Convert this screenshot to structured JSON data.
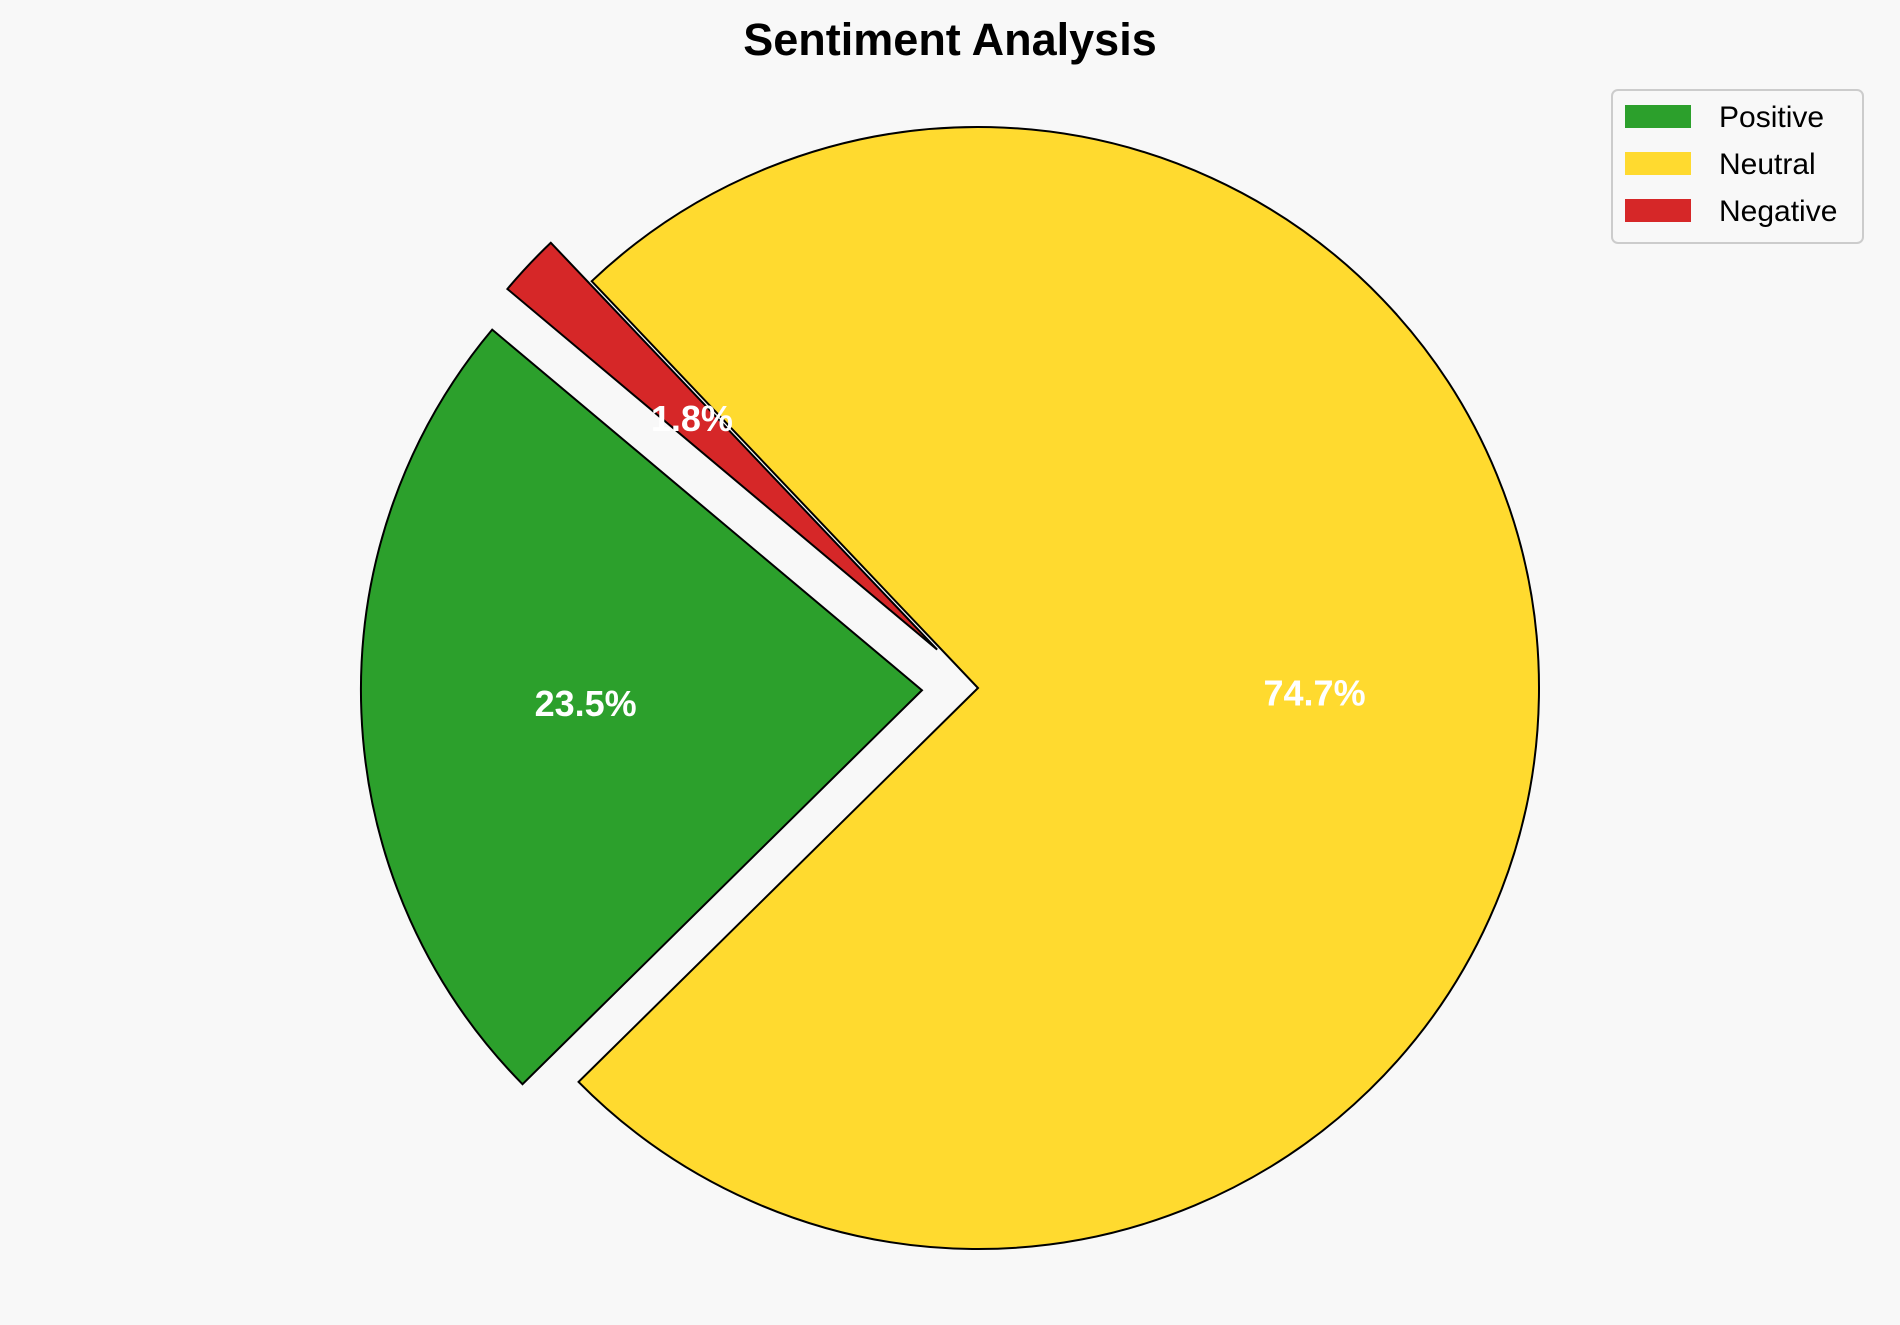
{
  "chart_data": {
    "type": "pie",
    "title": "Sentiment Analysis",
    "categories": [
      "Positive",
      "Neutral",
      "Negative"
    ],
    "values": [
      23.5,
      74.7,
      1.8
    ],
    "labels": [
      "23.5%",
      "74.7%",
      "1.8%"
    ],
    "colors": [
      "#2ca02c",
      "#ffda2f",
      "#d62728"
    ],
    "explode": [
      0.1,
      0,
      0.1
    ],
    "start_angle": 140,
    "direction": "counterclockwise",
    "edge_color": "#000000",
    "legend_placement": "top-right",
    "background": "#f8f8f8"
  }
}
